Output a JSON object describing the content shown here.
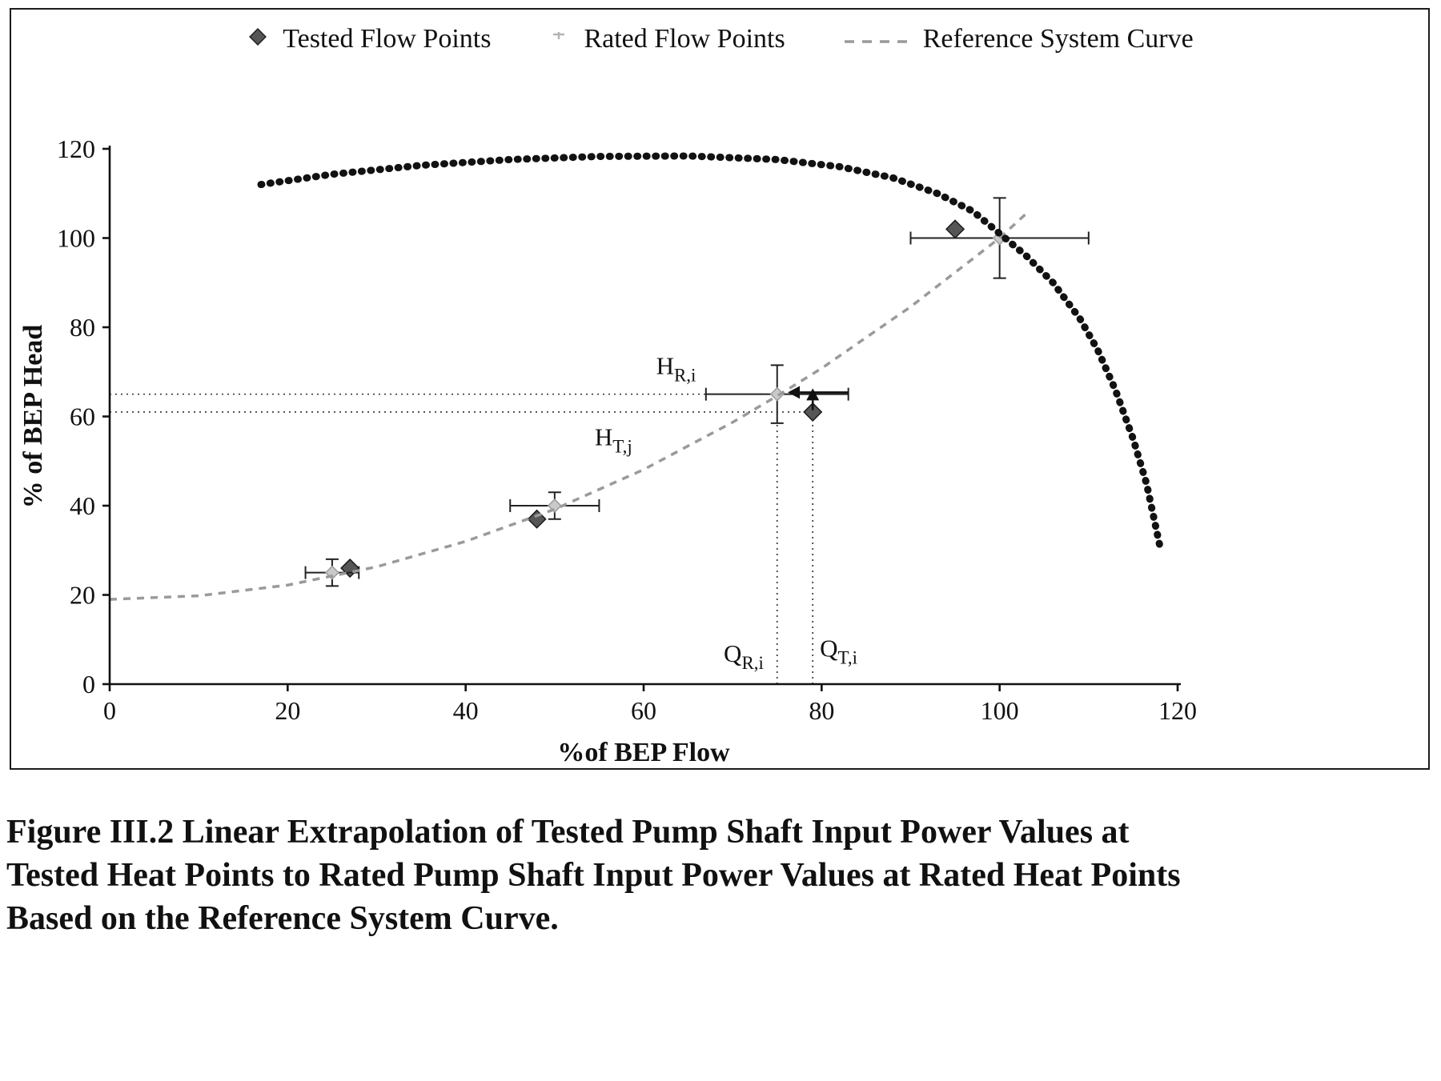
{
  "legend": {
    "items": [
      {
        "label": "Tested Flow Points",
        "marker": "dark-diamond"
      },
      {
        "label": "Rated Flow Points",
        "marker": "light-cross"
      },
      {
        "label": "Reference System Curve",
        "marker": "gray-dash"
      }
    ]
  },
  "caption": {
    "lines": [
      "Figure III.2 Linear Extrapolation of Tested Pump Shaft Input Power Values at",
      "Tested Heat Points to Rated Pump Shaft Input Power Values at Rated Heat Points",
      "Based on the Reference System Curve."
    ]
  },
  "chart_data": {
    "type": "line",
    "title": "",
    "xlabel": "%of BEP Flow",
    "ylabel": "% of BEP Head",
    "xlim": [
      0,
      120
    ],
    "ylim": [
      0,
      120
    ],
    "x_ticks": [
      0,
      20,
      40,
      60,
      80,
      100,
      120
    ],
    "y_ticks": [
      0,
      20,
      40,
      60,
      80,
      100,
      120
    ],
    "grid": false,
    "legend_position": "top-center",
    "series": [
      {
        "name": "Tested Flow Points",
        "type": "scatter",
        "marker": "diamond",
        "color": "#565656",
        "points": [
          [
            27,
            26
          ],
          [
            48,
            37
          ],
          [
            79,
            61
          ],
          [
            95,
            102
          ]
        ]
      },
      {
        "name": "Rated Flow Points",
        "type": "scatter-errorbar",
        "marker": "light-diamond",
        "color": "#c9c9c9",
        "points": [
          {
            "x": 25,
            "y": 25,
            "xerr": 3,
            "yerr": 3
          },
          {
            "x": 50,
            "y": 40,
            "xerr": 5,
            "yerr": 3
          },
          {
            "x": 75,
            "y": 65,
            "xerr": 8,
            "yerr": 6.5
          },
          {
            "x": 100,
            "y": 100,
            "xerr": 10,
            "yerr": 9
          }
        ]
      },
      {
        "name": "Reference System Curve",
        "type": "line",
        "style": "dashed",
        "color": "#9a9a9a",
        "points": [
          [
            0,
            19
          ],
          [
            10,
            19.8
          ],
          [
            20,
            22.2
          ],
          [
            30,
            26.3
          ],
          [
            40,
            32
          ],
          [
            50,
            39.2
          ],
          [
            60,
            48.1
          ],
          [
            70,
            58.7
          ],
          [
            75,
            64.6
          ],
          [
            80,
            70.8
          ],
          [
            90,
            84.6
          ],
          [
            100,
            100
          ],
          [
            103,
            105.5
          ]
        ]
      },
      {
        "name": "Pump Curve",
        "type": "line",
        "style": "dotted-bold",
        "color": "#121212",
        "points": [
          [
            17,
            112
          ],
          [
            25,
            114.3
          ],
          [
            35,
            116.3
          ],
          [
            45,
            117.6
          ],
          [
            55,
            118.3
          ],
          [
            65,
            118.4
          ],
          [
            75,
            117.6
          ],
          [
            82,
            116
          ],
          [
            88,
            113.5
          ],
          [
            93,
            110
          ],
          [
            97,
            106
          ],
          [
            100,
            101
          ],
          [
            103,
            96
          ],
          [
            106,
            90
          ],
          [
            109,
            82
          ],
          [
            111,
            75
          ],
          [
            113,
            66
          ],
          [
            115,
            55
          ],
          [
            116.5,
            45
          ],
          [
            118,
            31
          ]
        ]
      }
    ],
    "annotations": [
      {
        "text": "H",
        "sub": "R,i",
        "x": 61.4,
        "y": 69.5
      },
      {
        "text": "H",
        "sub": "T,j",
        "x": 54.5,
        "y": 53.5
      },
      {
        "text": "Q",
        "sub": "R,i",
        "x": 69.0,
        "y": 5.0
      },
      {
        "text": "Q",
        "sub": "T,i",
        "x": 79.8,
        "y": 6.2
      }
    ],
    "guide_lines": [
      {
        "type": "h",
        "y": 65,
        "x0": 0,
        "x1": 75
      },
      {
        "type": "h",
        "y": 61,
        "x0": 0,
        "x1": 79
      },
      {
        "type": "v",
        "x": 75,
        "y0": 0,
        "y1": 65
      },
      {
        "type": "v",
        "x": 79,
        "y0": 0,
        "y1": 61
      }
    ],
    "arrows": [
      {
        "x0": 83,
        "y0": 65.4,
        "x1": 76.2,
        "y1": 65.4
      },
      {
        "x0": 79,
        "y0": 61.4,
        "x1": 79,
        "y1": 66.3
      }
    ]
  }
}
